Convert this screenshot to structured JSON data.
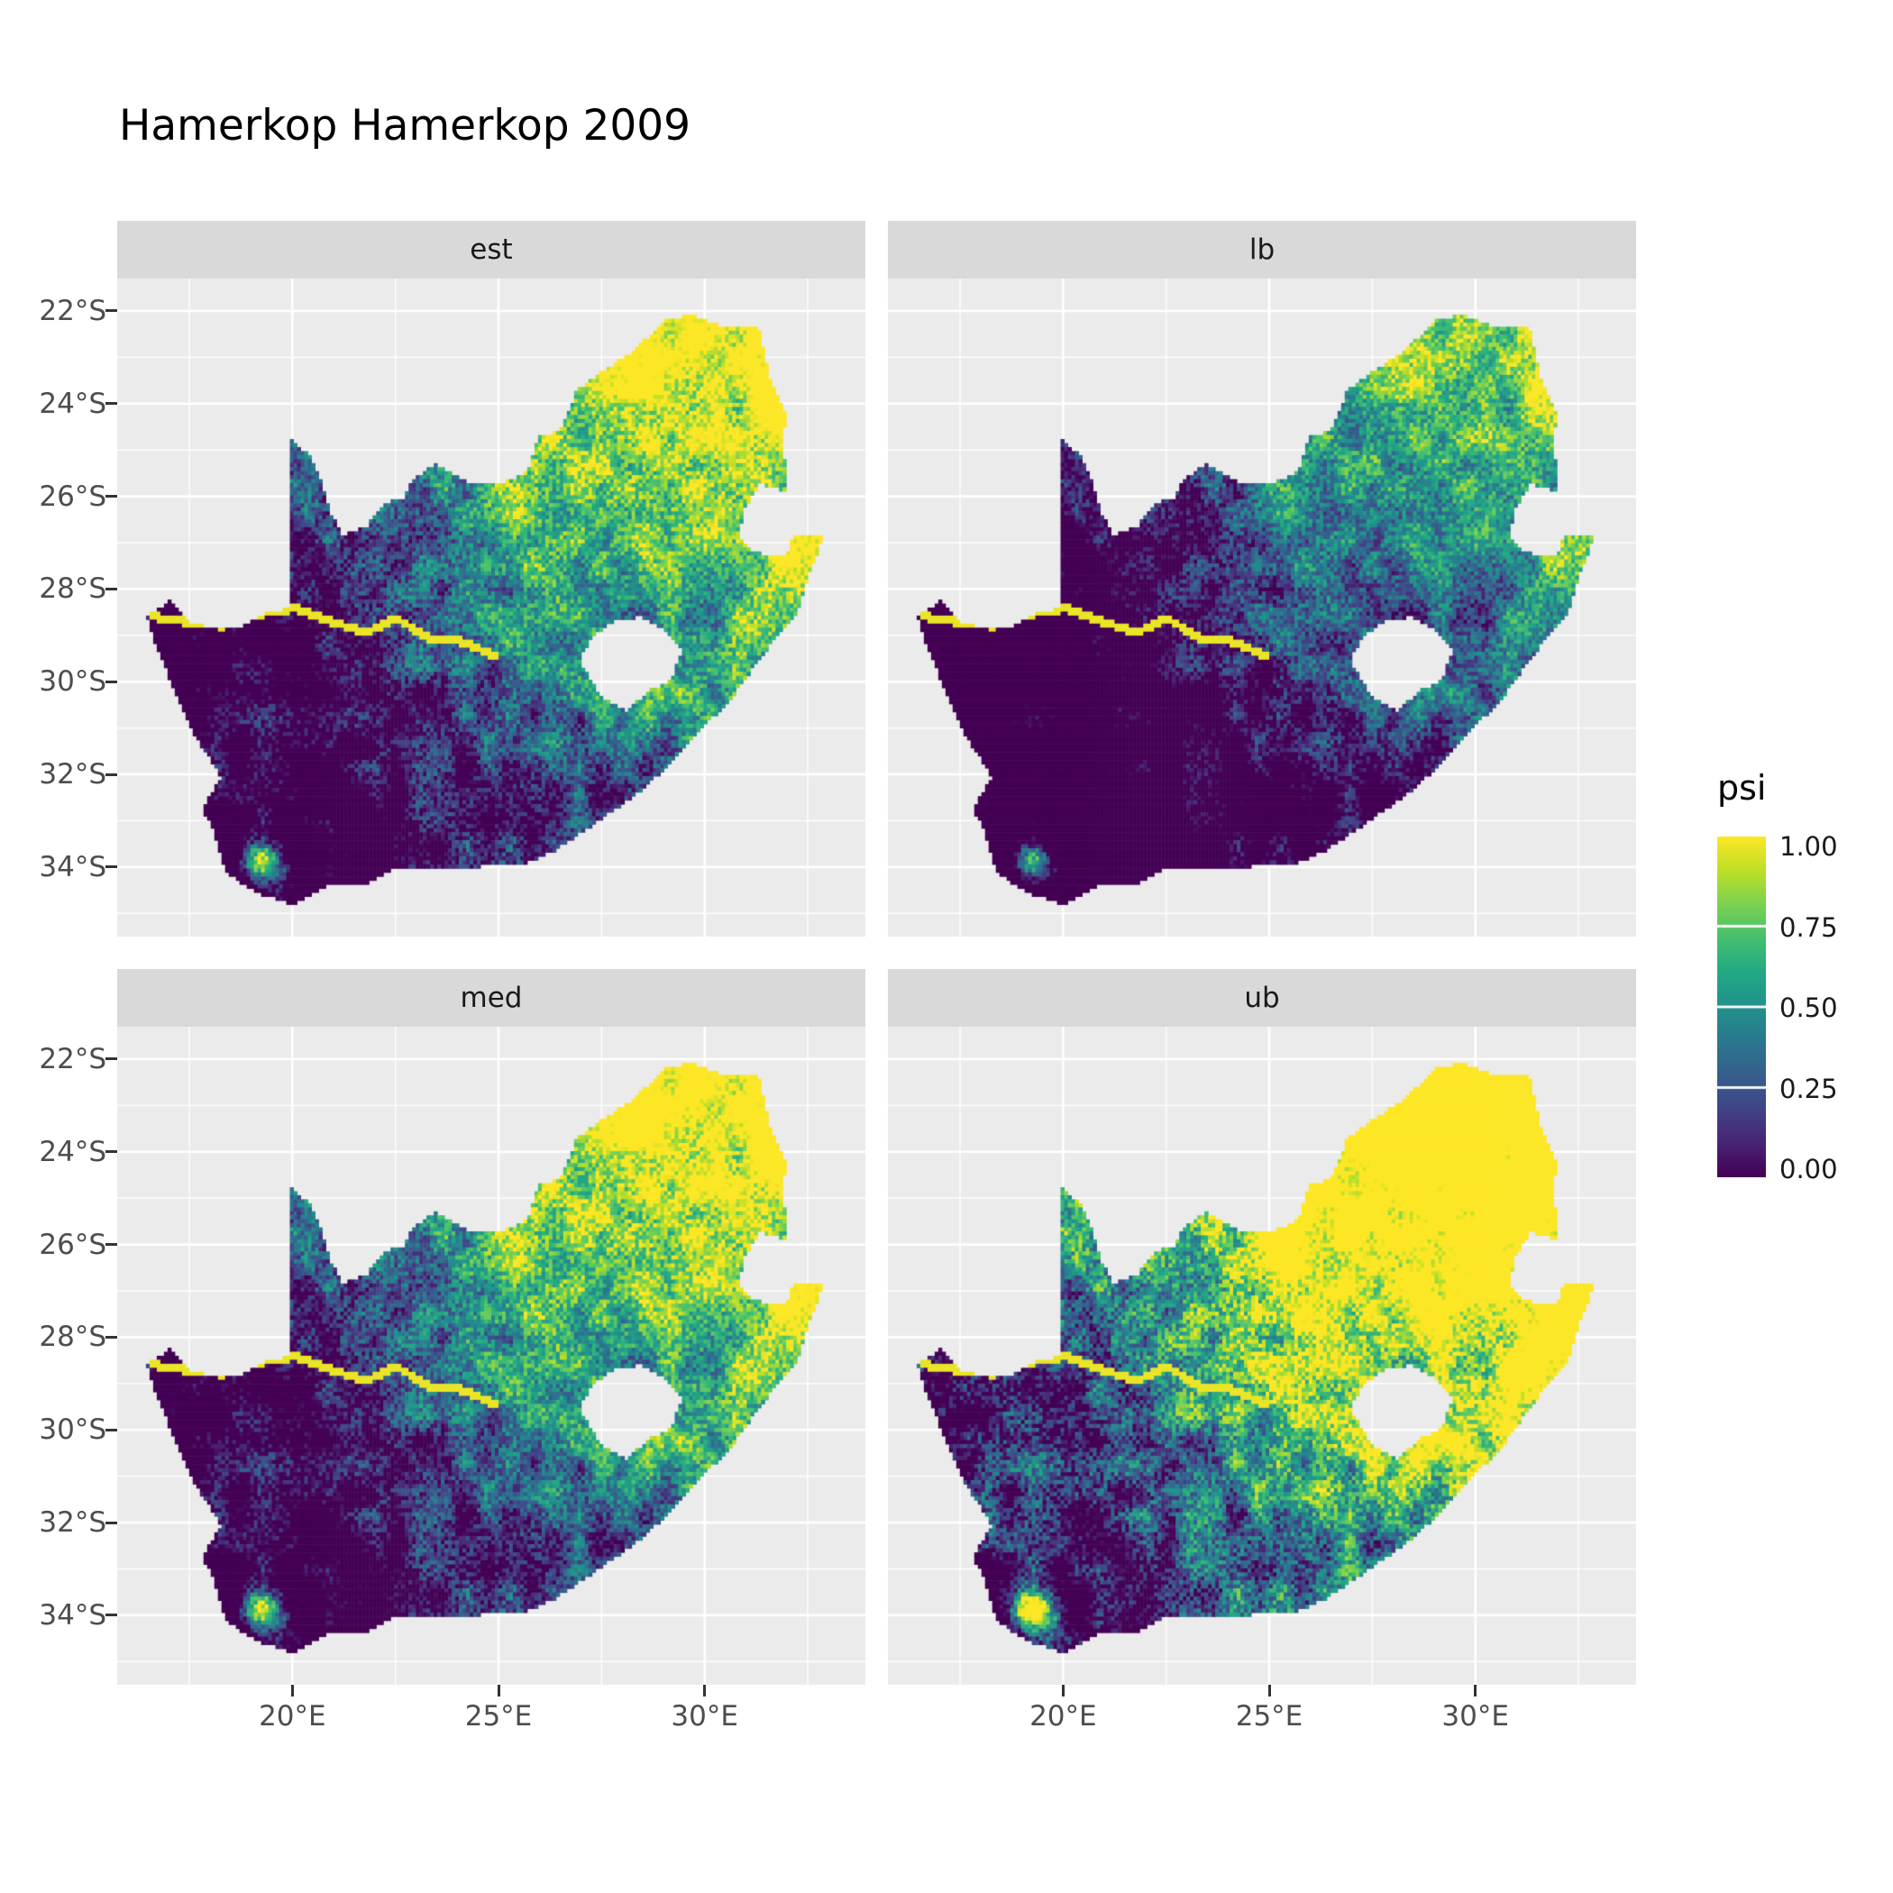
{
  "title": "Hamerkop Hamerkop 2009",
  "facets": [
    {
      "label": "est"
    },
    {
      "label": "lb"
    },
    {
      "label": "med"
    },
    {
      "label": "ub"
    }
  ],
  "legend": {
    "title": "psi",
    "tick_labels": [
      "1.00",
      "0.75",
      "0.50",
      "0.25",
      "0.00"
    ],
    "tick_values": [
      1.0,
      0.75,
      0.5,
      0.25,
      0.0
    ]
  },
  "axes": {
    "x_tick_labels": [
      "20°E",
      "25°E",
      "30°E"
    ],
    "x_tick_values": [
      20,
      25,
      30
    ],
    "y_tick_labels": [
      "22°S",
      "24°S",
      "26°S",
      "28°S",
      "30°S",
      "32°S",
      "34°S"
    ],
    "y_tick_values": [
      -22,
      -24,
      -26,
      -28,
      -30,
      -32,
      -34
    ]
  },
  "colors": {
    "background": "#FFFFFF",
    "panel_bg": "#EBEBEB",
    "strip_bg": "#D9D9D9",
    "grid_line": "#FFFFFF",
    "axis_text": "#4D4D4D",
    "strip_text": "#1A1A1A",
    "title_text": "#000000"
  },
  "chart_data": {
    "type": "heatmap",
    "subtype": "faceted raster occupancy map of South Africa (ggplot2 style), 2 x 2 facet grid",
    "title": "Hamerkop Hamerkop 2009",
    "facets": [
      "est",
      "lb",
      "med",
      "ub"
    ],
    "legend_title": "psi",
    "value_range": [
      0.0,
      1.0
    ],
    "colormap": "viridis",
    "viridis_stops": [
      "#440154",
      "#482475",
      "#414487",
      "#355f8d",
      "#2a788e",
      "#21918c",
      "#22a884",
      "#44bf70",
      "#7ad151",
      "#bddf26",
      "#fde725"
    ],
    "extent": {
      "lon": [
        15.75,
        33.9
      ],
      "lat": [
        -35.5,
        -21.3
      ]
    },
    "x_tick_values": [
      20,
      25,
      30
    ],
    "y_tick_values": [
      -22,
      -24,
      -26,
      -28,
      -30,
      -32,
      -34
    ],
    "pattern_summary": "psi near 1.0 (yellow) across the north-east; low psi (dark purple) along the west coast and south-west interior; speckled green transition through the centre; bright high-psi hotspot near the south-west cape (~19E, 34S); thin high-psi line along the Orange River (~28.5S); Lesotho shown as a hole. lb is the darkest surface, ub the brightest (nearly all yellow east of ~23E), est and med intermediate.",
    "render": {
      "grid": {
        "nx": 208,
        "ny": 164
      },
      "gradient": {
        "lon_ref": 16.4,
        "lon_span": 16.6,
        "lat_ref": -35.0,
        "lat_span": 13.0,
        "wu": 0.55,
        "wn": 0.55,
        "mul": 1.7,
        "off": -0.55
      },
      "hotspot": {
        "lon": 19.25,
        "lat": -33.9,
        "sigma": 0.33,
        "amp": 1.35
      },
      "noise": {
        "blob1_scale": 0.55,
        "blob1_amp": 0.5,
        "blob2_scale": 1.6,
        "blob2_amp": 0.33,
        "speckle_amp": 0.42
      },
      "facet_transforms": {
        "est": {
          "mul": 1.0,
          "add": 0.0
        },
        "lb": {
          "mul": 0.95,
          "add": -0.22
        },
        "med": {
          "mul": 1.0,
          "add": 0.05
        },
        "ub": {
          "mul": 1.2,
          "add": 0.26
        }
      },
      "river": {
        "width": 0.09,
        "boost": 0.97,
        "points": [
          [
            16.6,
            -28.6
          ],
          [
            17.5,
            -28.72
          ],
          [
            18.3,
            -28.8
          ],
          [
            19.1,
            -28.55
          ],
          [
            20.1,
            -28.42
          ],
          [
            21.0,
            -28.72
          ],
          [
            21.8,
            -28.95
          ],
          [
            22.5,
            -28.62
          ],
          [
            23.3,
            -29.05
          ],
          [
            24.2,
            -29.15
          ],
          [
            24.9,
            -29.45
          ]
        ]
      },
      "gridlines": {
        "major_x": [
          20,
          25,
          30
        ],
        "minor_x": [
          17.5,
          22.5,
          27.5,
          32.5
        ],
        "major_y": [
          -22,
          -24,
          -26,
          -28,
          -30,
          -32,
          -34
        ],
        "minor_y": [
          -23,
          -25,
          -27,
          -29,
          -31,
          -33,
          -35
        ]
      },
      "outline": [
        [
          16.45,
          -28.58
        ],
        [
          17.05,
          -28.25
        ],
        [
          17.45,
          -28.68
        ],
        [
          18.1,
          -28.87
        ],
        [
          18.75,
          -28.82
        ],
        [
          19.35,
          -28.5
        ],
        [
          19.98,
          -28.42
        ],
        [
          19.98,
          -24.77
        ],
        [
          20.45,
          -25.15
        ],
        [
          20.7,
          -25.7
        ],
        [
          20.9,
          -26.3
        ],
        [
          21.2,
          -26.85
        ],
        [
          21.8,
          -26.65
        ],
        [
          22.2,
          -26.15
        ],
        [
          22.7,
          -26.05
        ],
        [
          22.95,
          -25.6
        ],
        [
          23.5,
          -25.3
        ],
        [
          24.25,
          -25.7
        ],
        [
          25.1,
          -25.72
        ],
        [
          25.7,
          -25.45
        ],
        [
          25.95,
          -24.72
        ],
        [
          26.5,
          -24.6
        ],
        [
          26.9,
          -23.7
        ],
        [
          27.7,
          -23.2
        ],
        [
          28.35,
          -22.8
        ],
        [
          29.1,
          -22.15
        ],
        [
          29.7,
          -22.1
        ],
        [
          30.35,
          -22.3
        ],
        [
          31.3,
          -22.35
        ],
        [
          31.6,
          -23.55
        ],
        [
          32.0,
          -24.25
        ],
        [
          31.85,
          -24.85
        ],
        [
          32.02,
          -25.55
        ],
        [
          31.97,
          -25.9
        ],
        [
          31.35,
          -25.72
        ],
        [
          30.95,
          -26.3
        ],
        [
          30.82,
          -26.85
        ],
        [
          31.15,
          -27.2
        ],
        [
          31.97,
          -27.3
        ],
        [
          32.13,
          -26.84
        ],
        [
          32.89,
          -26.86
        ],
        [
          32.55,
          -27.65
        ],
        [
          32.2,
          -28.6
        ],
        [
          31.55,
          -29.25
        ],
        [
          30.65,
          -30.35
        ],
        [
          29.95,
          -31.0
        ],
        [
          29.2,
          -31.75
        ],
        [
          28.4,
          -32.4
        ],
        [
          27.35,
          -33.05
        ],
        [
          26.35,
          -33.65
        ],
        [
          25.55,
          -33.95
        ],
        [
          24.9,
          -33.92
        ],
        [
          24.15,
          -34.05
        ],
        [
          23.35,
          -34.0
        ],
        [
          22.45,
          -34.05
        ],
        [
          21.75,
          -34.4
        ],
        [
          20.85,
          -34.4
        ],
        [
          20.0,
          -34.82
        ],
        [
          19.3,
          -34.6
        ],
        [
          18.85,
          -34.4
        ],
        [
          18.45,
          -34.15
        ],
        [
          18.32,
          -33.92
        ],
        [
          18.05,
          -33.15
        ],
        [
          17.82,
          -32.75
        ],
        [
          18.27,
          -32.05
        ],
        [
          17.55,
          -31.05
        ],
        [
          17.05,
          -30.0
        ],
        [
          16.7,
          -29.25
        ]
      ],
      "lesotho": [
        [
          26.95,
          -29.55
        ],
        [
          27.3,
          -29.0
        ],
        [
          27.8,
          -28.68
        ],
        [
          28.45,
          -28.6
        ],
        [
          29.05,
          -28.88
        ],
        [
          29.45,
          -29.35
        ],
        [
          29.18,
          -29.95
        ],
        [
          28.65,
          -30.2
        ],
        [
          28.1,
          -30.62
        ],
        [
          27.5,
          -30.35
        ]
      ]
    }
  }
}
